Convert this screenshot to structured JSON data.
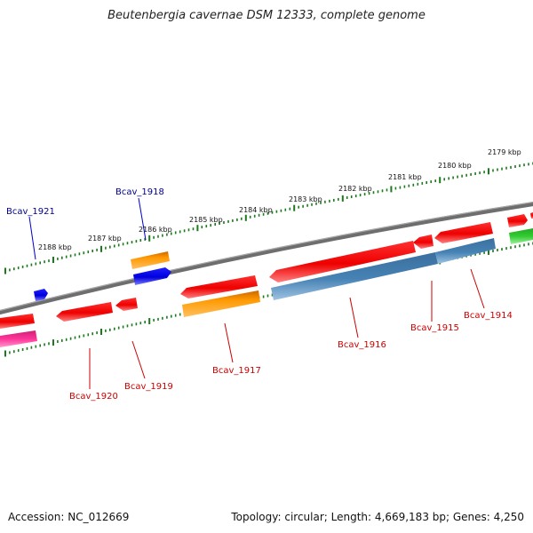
{
  "title": "Beutenbergia cavernae DSM 12333, complete genome",
  "footer": {
    "accession": "Accession: NC_012669",
    "summary": "Topology: circular; Length: 4,669,183 bp; Genes: 4,250"
  },
  "ruler": {
    "unit": "kbp",
    "labels": [
      "2188 kbp",
      "2187 kbp",
      "2186 kbp",
      "2185 kbp",
      "2184 kbp",
      "2183 kbp",
      "2182 kbp",
      "2181 kbp",
      "2180 kbp",
      "2179 kbp"
    ]
  },
  "genes": [
    {
      "name": "Bcav_1921",
      "strand": "+",
      "color": "#0000dd",
      "label_color": "#00008b"
    },
    {
      "name": "Bcav_1918",
      "strand": "+",
      "color": "#0000dd",
      "label_color": "#00008b"
    },
    {
      "name": "Bcav_1920",
      "strand": "-",
      "color": "#ee0000",
      "label_color": "#cc0000"
    },
    {
      "name": "Bcav_1919",
      "strand": "-",
      "color": "#ee0000",
      "label_color": "#cc0000"
    },
    {
      "name": "Bcav_1917",
      "strand": "-",
      "color": "#ee0000",
      "label_color": "#cc0000"
    },
    {
      "name": "Bcav_1916",
      "strand": "-",
      "color": "#ee0000",
      "label_color": "#cc0000"
    },
    {
      "name": "Bcav_1915",
      "strand": "-",
      "color": "#ee0000",
      "label_color": "#cc0000"
    },
    {
      "name": "Bcav_1914",
      "strand": "-",
      "color": "#ee0000",
      "label_color": "#cc0000"
    }
  ],
  "colors": {
    "backbone": "#777777",
    "ruler_ticks": "#1b7a1b",
    "cds_minus": "#ee0000",
    "cds_plus": "#0000dd",
    "rrna_orange": "#ff9900",
    "feature_steelblue": "#4682b4",
    "feature_pink": "#ff3399",
    "feature_green": "#33cc33"
  }
}
